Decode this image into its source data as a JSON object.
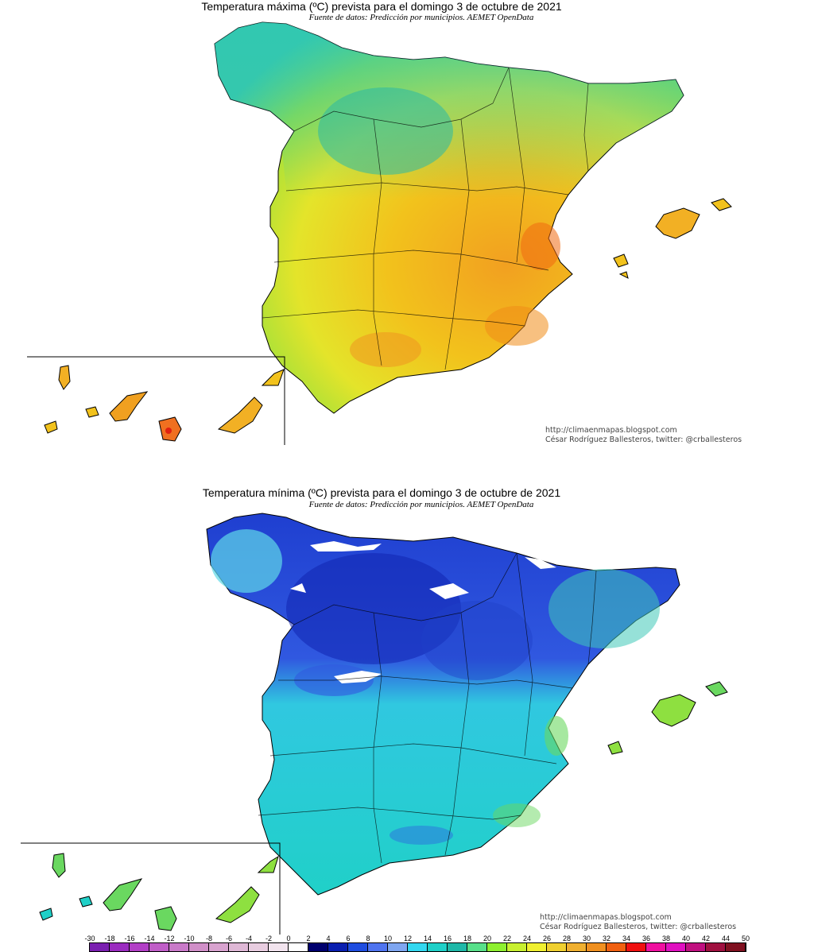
{
  "maps": [
    {
      "id": "max",
      "title": "Temperatura máxima (ºC) prevista para el domingo 3 de octubre de 2021",
      "source": "Fuente de datos: Predicción por municipios. AEMET OpenData",
      "credit_url": "http://climaenmapas.blogspot.com",
      "credit_author": "César Rodríguez Ballesteros, twitter: @crballesteros"
    },
    {
      "id": "min",
      "title": "Temperatura mínima (ºC) prevista para el domingo 3 de octubre de 2021",
      "source": "Fuente de datos: Predicción por municipios. AEMET OpenData",
      "credit_url": "http://climaenmapas.blogspot.com",
      "credit_author": "César Rodríguez Ballesteros, twitter: @crballesteros"
    }
  ],
  "legend": {
    "ticks": [
      "-30",
      "-18",
      "-16",
      "-14",
      "-12",
      "-10",
      "-8",
      "-6",
      "-4",
      "-2",
      "0",
      "2",
      "4",
      "6",
      "8",
      "10",
      "12",
      "14",
      "16",
      "18",
      "20",
      "22",
      "24",
      "26",
      "28",
      "30",
      "32",
      "34",
      "36",
      "38",
      "40",
      "42",
      "44",
      "50"
    ],
    "colors": [
      "#7a1fb0",
      "#9a2cc0",
      "#b23fc6",
      "#c05ec8",
      "#c97ac9",
      "#d08fc8",
      "#d8a3cf",
      "#dfb8d6",
      "#e8cde0",
      "#f2e4ee",
      "#ffffff",
      "#00006e",
      "#0a1fb0",
      "#1f4de0",
      "#4f74f0",
      "#7fa6f0",
      "#33d8f0",
      "#1fd0c8",
      "#1fb8a8",
      "#58e08a",
      "#8ef030",
      "#c8f030",
      "#f0f030",
      "#f0d030",
      "#f0b030",
      "#f09020",
      "#f06010",
      "#f01010",
      "#f010a0",
      "#e010c0",
      "#c01080",
      "#a01040",
      "#801020"
    ]
  }
}
